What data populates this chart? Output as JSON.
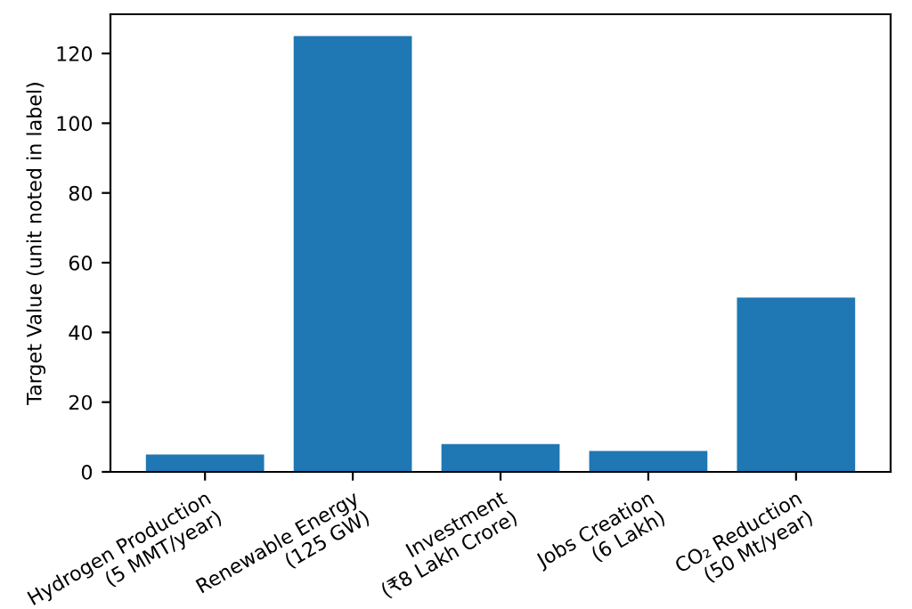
{
  "chart_data": {
    "type": "bar",
    "ylabel": "Target Value (unit noted in label)",
    "categories": [
      "Hydrogen Production\n(5 MMT/year)",
      "Renewable Energy\n(125 GW)",
      "Investment\n(₹8 Lakh Crore)",
      "Jobs Creation\n(6 Lakh)",
      "CO₂ Reduction\n(50 Mt/year)"
    ],
    "values": [
      5,
      125,
      8,
      6,
      50
    ],
    "color": "#1f77b4",
    "ylim": [
      0,
      131.25
    ],
    "yticks": [
      0,
      20,
      40,
      60,
      80,
      100,
      120
    ],
    "grid": false
  }
}
